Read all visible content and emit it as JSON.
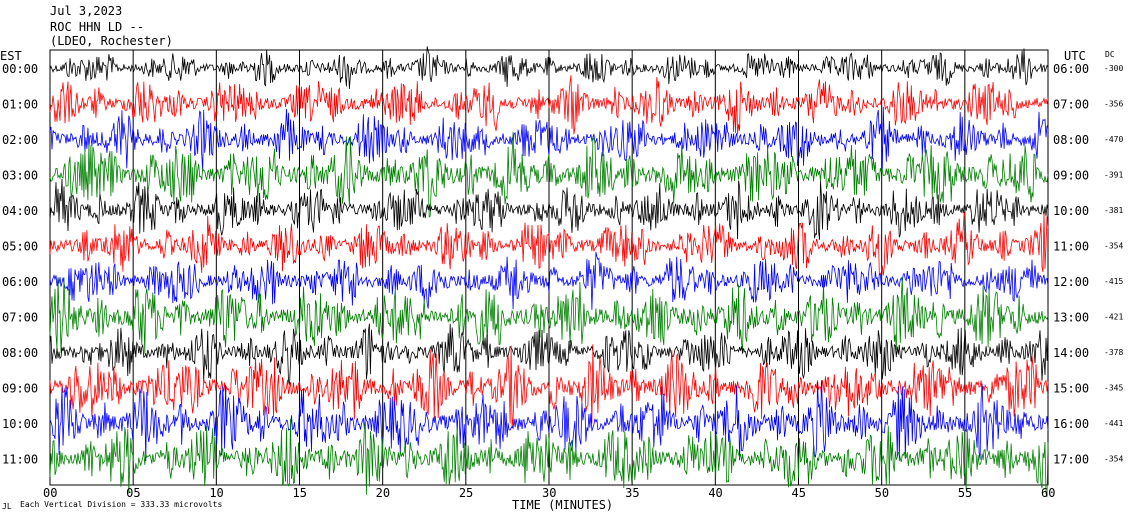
{
  "header": {
    "date": "Jul 3,2023",
    "station": "ROC HHN LD --",
    "network": "(LDEO, Rochester)",
    "left_tz": "EST",
    "right_tz": "UTC",
    "dc_label": "DC"
  },
  "footer": {
    "scale": "Each Vertical Division =  333.33 microvolts",
    "mark": "JL"
  },
  "chart_data": {
    "type": "line",
    "title": "",
    "xlabel": "TIME (MINUTES)",
    "ylabel": "",
    "xlim": [
      0,
      60
    ],
    "x_ticks": [
      "00",
      "05",
      "10",
      "15",
      "20",
      "25",
      "30",
      "35",
      "40",
      "45",
      "50",
      "55",
      "60"
    ],
    "grid": true,
    "trace_colors": [
      "#000000",
      "#ff0000",
      "#0000ff",
      "#007f00"
    ],
    "series": [
      {
        "local_hour": "00:00",
        "utc_hour": "06:00",
        "dc": "-300",
        "amplitude": 2
      },
      {
        "local_hour": "01:00",
        "utc_hour": "07:00",
        "dc": "-356",
        "amplitude": 3
      },
      {
        "local_hour": "02:00",
        "utc_hour": "08:00",
        "dc": "-470",
        "amplitude": 3
      },
      {
        "local_hour": "03:00",
        "utc_hour": "09:00",
        "dc": "-391",
        "amplitude": 4
      },
      {
        "local_hour": "04:00",
        "utc_hour": "10:00",
        "dc": "-381",
        "amplitude": 3
      },
      {
        "local_hour": "05:00",
        "utc_hour": "11:00",
        "dc": "-354",
        "amplitude": 3
      },
      {
        "local_hour": "06:00",
        "utc_hour": "12:00",
        "dc": "-415",
        "amplitude": 3
      },
      {
        "local_hour": "07:00",
        "utc_hour": "13:00",
        "dc": "-421",
        "amplitude": 4
      },
      {
        "local_hour": "08:00",
        "utc_hour": "14:00",
        "dc": "-378",
        "amplitude": 3
      },
      {
        "local_hour": "09:00",
        "utc_hour": "15:00",
        "dc": "-345",
        "amplitude": 4
      },
      {
        "local_hour": "10:00",
        "utc_hour": "16:00",
        "dc": "-441",
        "amplitude": 4
      },
      {
        "local_hour": "11:00",
        "utc_hour": "17:00",
        "dc": "-354",
        "amplitude": 4
      }
    ]
  }
}
